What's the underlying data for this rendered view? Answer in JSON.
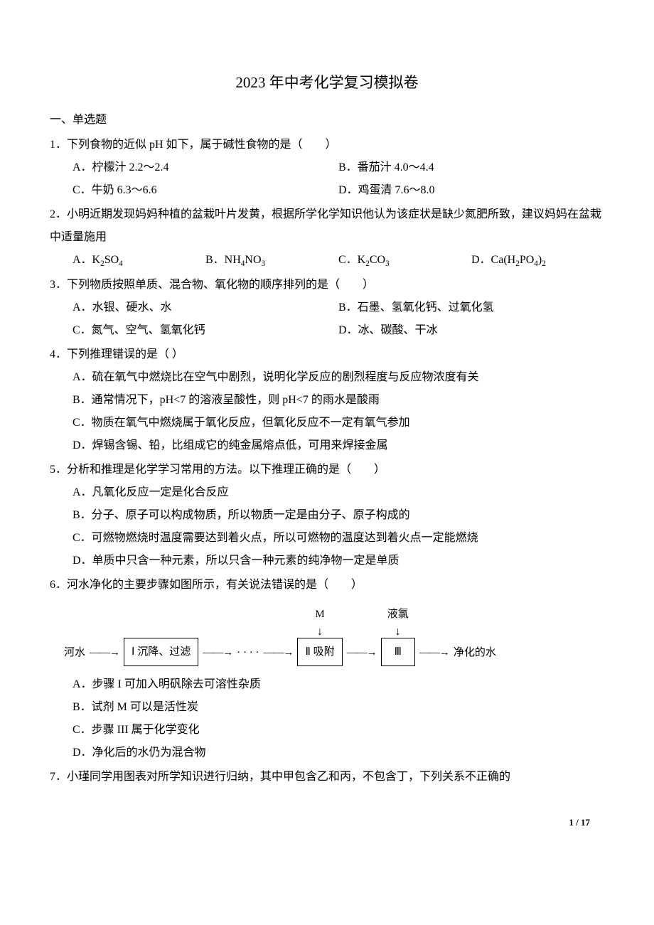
{
  "title": "2023 年中考化学复习模拟卷",
  "section1": "一、单选题",
  "q1": {
    "stem": "1．下列食物的近似 pH 如下，属于碱性食物的是（　　）",
    "A": "A．柠檬汁 2.2～2.4",
    "B": "B．番茄汁 4.0～4.4",
    "C": "C．牛奶 6.3～6.6",
    "D": "D．鸡蛋清 7.6～8.0"
  },
  "q2": {
    "stem": "2．小明近期发现妈妈种植的盆栽叶片发黄，根据所学化学知识他认为该症状是缺少氮肥所致，建议妈妈在盆栽中适量施用",
    "A": "A．K",
    "A_sub1": "2",
    "A2": "SO",
    "A_sub2": "4",
    "B": "B．NH",
    "B_sub1": "4",
    "B2": "NO",
    "B_sub2": "3",
    "C": "C．K",
    "C_sub1": "2",
    "C2": "CO",
    "C_sub2": "3",
    "D": "D．Ca(H",
    "D_sub1": "2",
    "D2": "PO",
    "D_sub2": "4",
    "D3": ")",
    "D_sub3": "2"
  },
  "q3": {
    "stem": "3．下列物质按照单质、混合物、氧化物的顺序排列的是（　　）",
    "A": "A．水银、硬水、水",
    "B": "B．石墨、氢氧化钙、过氧化氢",
    "C": "C．氮气、空气、氢氧化钙",
    "D": "D．冰、碳酸、干冰"
  },
  "q4": {
    "stem": "4．下列推理错误的是（ ）",
    "A": "A．硫在氧气中燃烧比在空气中剧烈，说明化学反应的剧烈程度与反应物浓度有关",
    "B": "B．通常情况下，pH<7 的溶液呈酸性，则 pH<7 的雨水是酸雨",
    "C": "C．物质在氧气中燃烧属于氧化反应，但氧化反应不一定有氧气参加",
    "D": "D．焊锡含锡、铅，比组成它的纯金属熔点低，可用来焊接金属"
  },
  "q5": {
    "stem": "5．分析和推理是化学学习常用的方法。以下推理正确的是（　　）",
    "A": "A．凡氧化反应一定是化合反应",
    "B": "B．分子、原子可以构成物质，所以物质一定是由分子、原子构成的",
    "C": "C．可燃物燃烧时温度需要达到着火点，所以可燃物的温度达到着火点一定能燃烧",
    "D": "D．单质中只含一种元素，所以只含一种元素的纯净物一定是单质"
  },
  "q6": {
    "stem": "6．河水净化的主要步骤如图所示，有关说法错误的是（　　）",
    "A": "A．步骤 I 可加入明矾除去可溶性杂质",
    "B": "B．试剂 M 可以是活性炭",
    "C": "C．步骤 III 属于化学变化",
    "D": "D．净化后的水仍为混合物"
  },
  "q7": {
    "stem": "7．小瑾同学用图表对所学知识进行归纳，其中甲包含乙和丙，不包含丁，下列关系不正确的"
  },
  "flow": {
    "start": "河水",
    "box1": "Ⅰ 沉降、过滤",
    "dots": "· · · ·",
    "labelM": "M",
    "box2": "Ⅱ 吸附",
    "labelCl": "液氯",
    "box3": "Ⅲ",
    "end": "净化的水",
    "arrow": "——→"
  },
  "pagenum": "1 / 17",
  "colors": {
    "text": "#000000",
    "background": "#ffffff",
    "border": "#000000"
  }
}
